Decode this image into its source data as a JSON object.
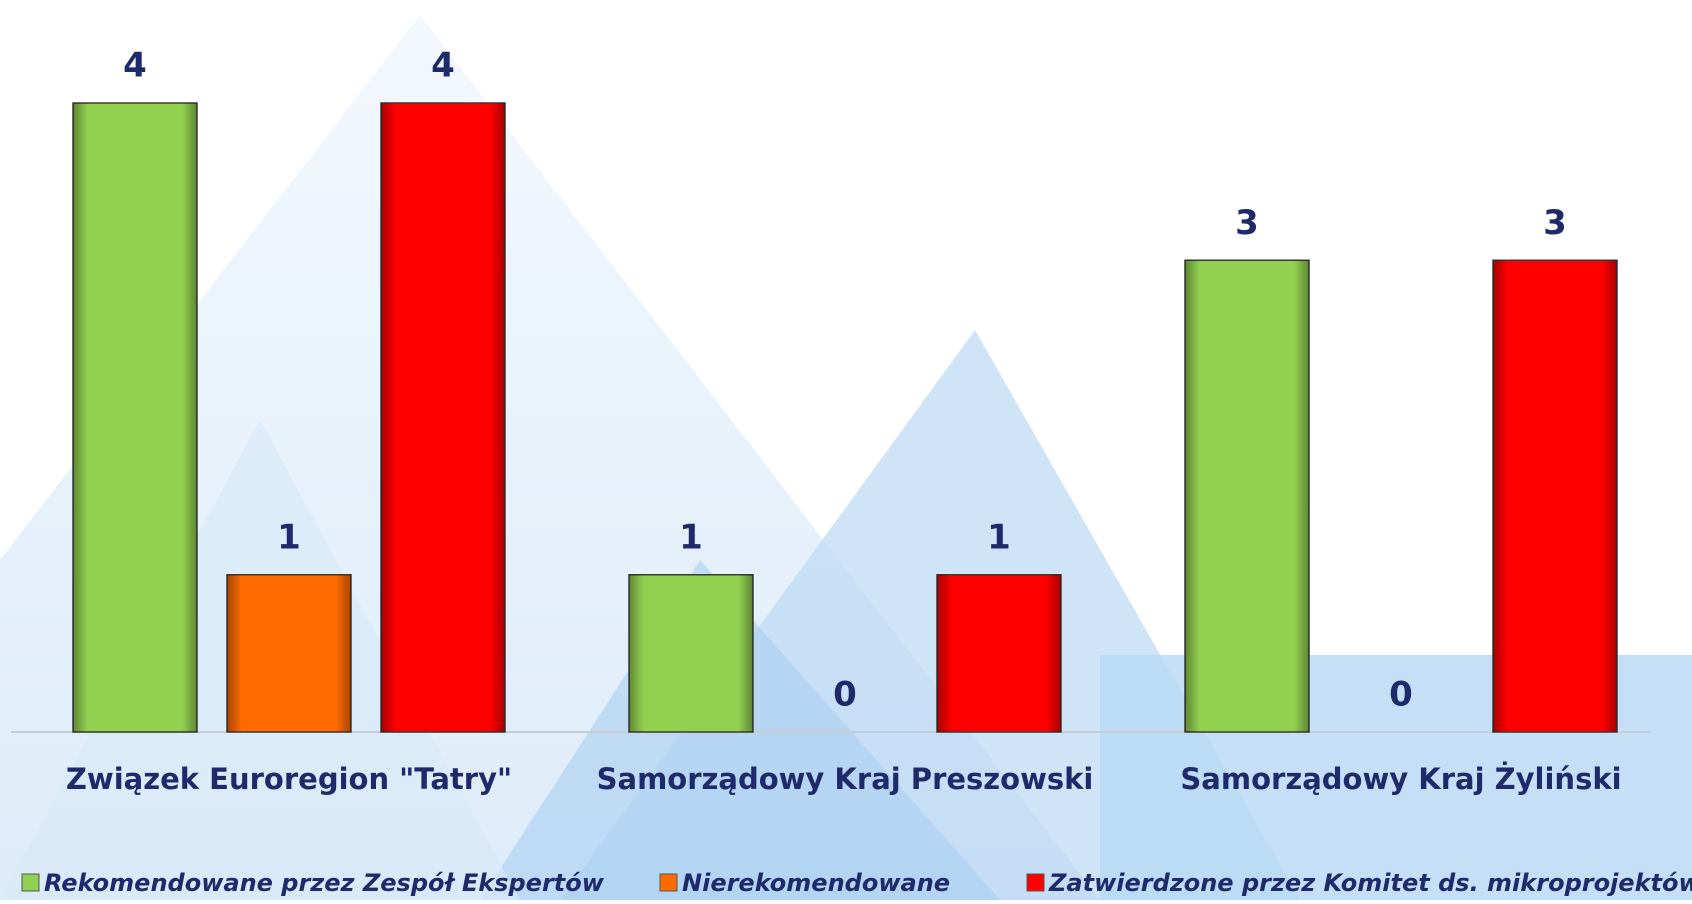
{
  "chart_data": {
    "type": "bar",
    "categories": [
      "Związek Euroregion \"Tatry\"",
      "Samorządowy Kraj Preszowski",
      "Samorządowy Kraj Żyliński"
    ],
    "series": [
      {
        "name": "Rekomendowane przez Zespół Ekspertów",
        "color": "#92d050",
        "values": [
          4,
          1,
          3
        ]
      },
      {
        "name": "Nierekomendowane",
        "color": "#ff6a00",
        "values": [
          1,
          0,
          0
        ]
      },
      {
        "name": "Zatwierdzone przez Komitet ds. mikroprojektów",
        "color": "#ff0000",
        "values": [
          4,
          1,
          3
        ]
      }
    ],
    "ylim": [
      0,
      4
    ],
    "legend": "bottom"
  }
}
